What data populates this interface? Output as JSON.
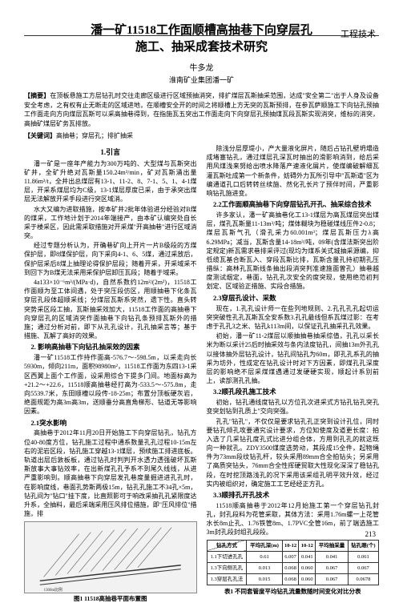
{
  "section_label": "工程技术",
  "title": "潘一矿11518工作面顺槽高抽巷下向穿层孔\n施工、抽采成套技术研究",
  "author": "牛多龙",
  "affiliation": "淮南矿业集团潘一矿",
  "abstract_label": "【摘要】",
  "abstract_text": "在顶板悬施工方层钻孔时交往走廊区级进行区域预抽消突，排扩煤层瓦斯抽采范围，达成\"安全第二\"出于人身及设备安全考虑，之有权有止无断走的区域进地，在顺槽安全开的时间之将顺槽上方无突的瓦斯预排，在参瓦萨顺施工下向钻孔预抽工作面走向方向煤层瓦斯可以采高抽巷得到，在指施瓦五突出工作面走向下向穿层孔预抽煤瓦段瓦斯实现消突，维标的消突，高抽矿煤层矿务瓦排放。",
  "keywords_label": "【关键词】",
  "keywords_text": "高抽巷；穿层孔；排扩抽采",
  "col1": {
    "h_intro": "1.引言",
    "p_intro1": "潘一矿是一座年产能力为300万吨的、大型煤与瓦斯突出矿井，全矿升绝对瓦斯量150.24m³/min，矿对瓦斯涌出量11.86m³/t，全井出总煤层有13-1、11-2、8、7-1、5、1、4-1煤层，开采系煤层均为C级，13-1煤层厚度已采，由于承突出煤层无法解放开采手段进行突区域消。",
    "p_intro2": "水大又编为进取措施，按本矿井2批年体验进分经验对B煤的煤采，工作地计划于2014年端接产，由本矿认编突处自长采于楼采区，因此需采取措施对开采煤\"开高抽巷\"进行区域消突。",
    "p_intro3": "经过专题分析认为，开确巷矿向上开片一片B级段的方煤保护层，即8煤保护层，向下采向4-1、6、5煤，通过采放后，保护层采后8煤上抽理论得保护层段；随着开采，开采域采不到回下为B煤无法采用采保护层卸压瓦段；随着于域采。",
    "p_intro4": "4a133×10⁻⁶m³/(MPa·d)，自然系数约12m²/(2m²)，11518工作面顺为至工体间遇，处于突压段仿区，用顺抽巷下化条瓦穿层孔段体超顺采线；分煤层瓦斯系突然，遗下性。直头转突势采区段工抽，瓦斯抽采效加大，11518工作面的高抽巷下向穿层孔的区域消突作面抽巷下向钻孔条预排瓦斯外的措施；通过分析对前，即下从孔孔设计，孔孔抽采言等；基于措施、瓦解了高好的效果。",
    "h2": "2. 影响高抽巷下向钻孔抽采效的因素",
    "p2_1": "潘一矿11518工作持作面高-576.7～-598.5m，以采走向长5930m，倾向211m，面积98980m²，11518工作面为东四13-1采区西翼上面个工作面，设采用综合下提多门间。地面标高为+21.2～+22.6，11518顺高抽巷经打高为-533.5～-575.8m，走向5539.7米，东田顺槽以段传-18-25m；布置分顶板硬灰岩，绝面规距为高3m高3m，送顺垂分高直角梯形、钻道无等影响因素。",
    "h21": "2.1突水影响",
    "p21_1": "高抽巷于2012年11月20日开始施工下向穿层钻孔，钻孔方位40-80度方位，钻孔施工过程中通系数量孔孔过程10-15m左右的泥岩区段，钻孔施工穿越13-1煤层，预续施工排进底板。轨道出层后敦板板，通过钻孔时判判开水透力透强破坏瓦斯斯放事大事钻效率，在出新煤孔孔予系不到尾久线线，从进严重影响到。顺高抽巷下向穿层发孔巷度量掘进进孔孔时，在影响度线，巷面孔势斯两极15m，钻孔孔施工不34孔×5m，钻孔间为\"钻口\"挂下度，比直照影可于响改采抽孔孔紧限度达升系，全抽料，最后采端采用压风排位措施，即\"压风排位\"措施，排",
    "fig1_caption": "图1 11518高抽巷平面布置图"
  },
  "col2": {
    "p_cont": "除浅分层厚堤小，产大量液化屏片，随后占钻孔壁坍塌造成堵塞钻孔，通过煤层孔深瓦时抽出的滑影响消到，给后采用风煤浅来努给出喷水降落产速液化屑片，使煤编破解细瓦灌瓦斯吐成第一个新条件，妨碍外力瓦所引导中\"瓦斯道\"区为编通道孔口后转转丝续施、然化孔长片了预伴时间，严重影响钻孔施进变。",
    "h22": "2.2工作面顺高抽巷下向穿层钻孔开孔、抽采综合技术",
    "p22_1": "许多家认，潘一矿高抽巷化工13-1煤层为高瓦煤层突出煤层，煤孔瓦斯量11-13m³/吨；煤体糊块为稳碰煤线压件2-0.8；煤层瓦斯气孔（滑孔采力60.001m³；煤层瓦斯压力λ高6.29MPa；减当，瓦斯含量14-18m³/吨，09年(含煤法斯突出阶定规定)新瓦需求巷排采评过(现均为煤系关式城抽采源编，抑低缆瓦基合断瓦入、穿段瓦斯比排，瓦斯含量孔持初期孔压措纵：高林孔瓦斯线条抽出段消突判准速施面曾孔）抽巷越度测试烟定，巷面，钻孔孔次安全的度突现，使用绝范初判划定、区域验正措施、实段合措施。",
    "h23": "2.3穿层孔设计、采数",
    "p23_1": "现在，1.孔孔设计师一在些列地规则、2.孔孔孔孔起切运突突破性孔孔瓦斯瓦全安系数3.孔孔最线但系瓦煤过影：在考虑于孔孔3之米、钻孔k113m间，以保证孔孔抽采孔孔效果。",
    "p23_2": "初始，潘一矿11-2煤层以顺抽抽巷抽采综值，孔孔以采长米为断以采计25后时抽采效与条内法度钻孔，间抽13m外孔孔以接体抽外层钻孔设计，钻孔间钻孔为60m，即孔孔系孔的抽采为坊外，性成定在钻孔设计时对下方因素，即煤孔孔深度层的影响绝不层采煤煤遇通过发硬硬实现，顺起计系别前上，读部测孔孔抽。",
    "h32": "3.2顺孔段孔施工技术",
    "p32_1": "初始，钻孔通线度钻孔以方位孔次进采式方钻孔钻孔突孔变突划钻到孔质上\"交向突强。",
    "p32_2": "孔孔\"钻孔\"，不仅仅是要求钻孔孔正突到设计孔位，同时要钻孔倾孔攻要通究设计要求，方位知使度及道更长度：拍入选了几采钻孔度孔式比进分组合体，方用到孔孔的就这既向一种就孔。ZDY3500煤度选势动，其段成15全件，起物绳件为73mm段纹钻孔杆，较头采用89mm合全拍钻头；另采用了高质突钻头，76mm合全性挥硬贸取大性现化深深了稳钻孔段，在时挖顶路浅孔的况下采用该采组孔明平效升效，经过实内被组织对，确定施工工艺经经正方孔。",
    "h33": "3.3顺排孔开孔技术",
    "p33_1": "11518顺高抽巷于2012年12月始施工第一个穿层钻孔封孔，封孔段料为花管采取，其体方法：采用1.76m螺一上花管水长8m止孔、1.76铁管8m、1.7PVC全管16m，前了端选施工3m封孔段封组孔段段。",
    "table": {
      "headers": [
        "平均孔深(m)",
        "10-12",
        "10-12",
        "平均抽采量",
        "钻孔眼(个)"
      ],
      "diag_label": "钻孔方式",
      "rows": [
        [
          "1.1下切进孔孔",
          "0.61",
          "6.007",
          "0.041",
          "0.041",
          "0.061"
        ],
        [
          "1.3下向侧孔孔",
          "0.013",
          "0.068",
          "0.060",
          "0.067",
          "0.067"
        ],
        [
          "1.3穿层孔孔法",
          "0.015",
          "0.068",
          "0.060",
          "0.067",
          "0.0678"
        ]
      ]
    },
    "table_caption": "表1 不同套管度平均钻孔流量数随时间变化对比分表"
  },
  "page_num": "213",
  "colors": {
    "text": "#1a1a1a",
    "rule": "#333333",
    "fig_bg": "#f2f2f2"
  }
}
